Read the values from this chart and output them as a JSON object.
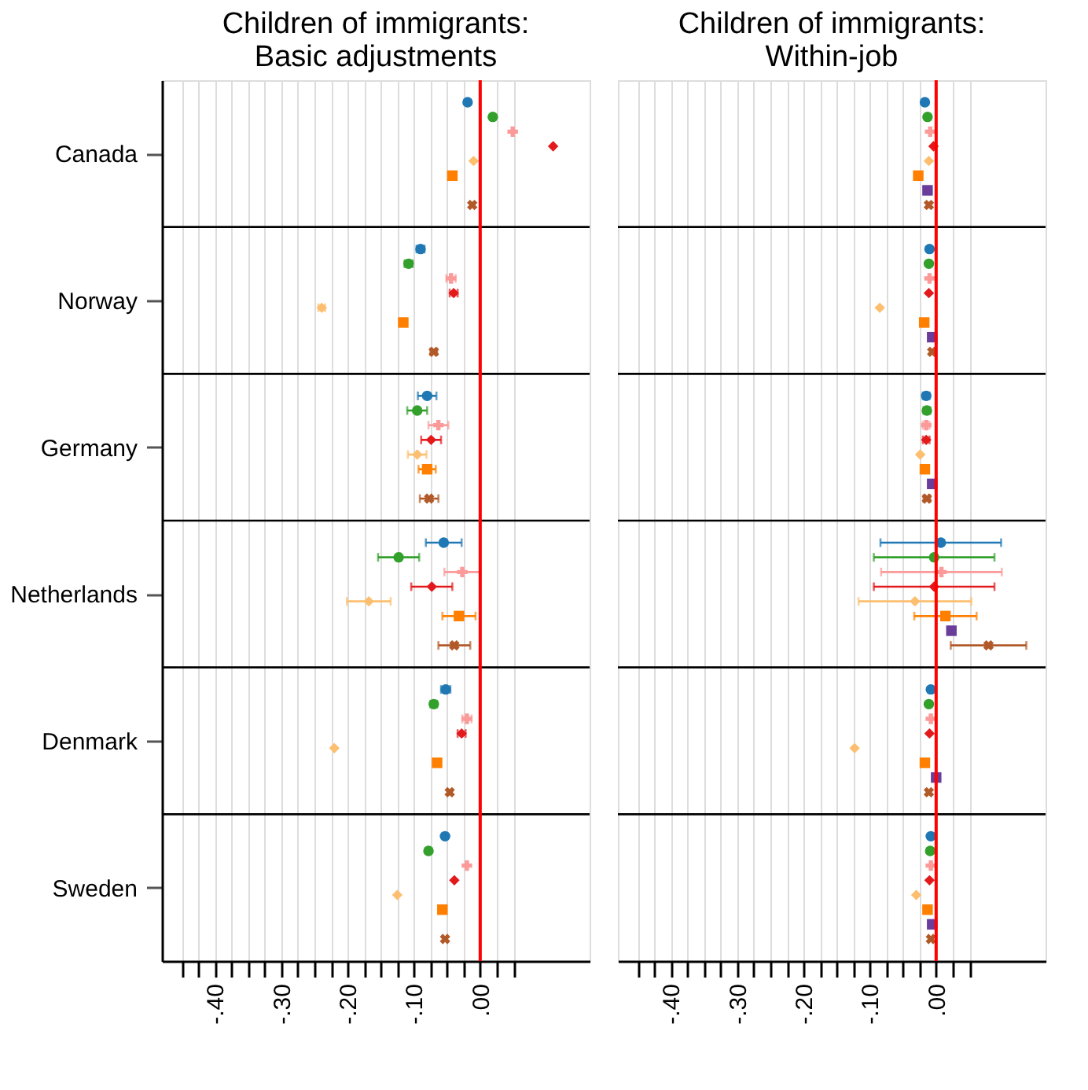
{
  "chart_data": [
    {
      "type": "scatter",
      "orientation": "horizontal",
      "title": "Children of immigrants:\nBasic adjustments",
      "categories": [
        "Canada",
        "Norway",
        "Germany",
        "Netherlands",
        "Denmark",
        "Sweden"
      ],
      "xlim": [
        -0.48,
        0.165
      ],
      "xticks": [
        {
          "value": -0.45,
          "label": null
        },
        {
          "value": -0.425,
          "label": null
        },
        {
          "value": -0.4,
          "label": "-.40"
        },
        {
          "value": -0.375,
          "label": null
        },
        {
          "value": -0.35,
          "label": null
        },
        {
          "value": -0.325,
          "label": null
        },
        {
          "value": -0.3,
          "label": "-.30"
        },
        {
          "value": -0.275,
          "label": null
        },
        {
          "value": -0.25,
          "label": null
        },
        {
          "value": -0.225,
          "label": null
        },
        {
          "value": -0.2,
          "label": "-.20"
        },
        {
          "value": -0.175,
          "label": null
        },
        {
          "value": -0.15,
          "label": null
        },
        {
          "value": -0.125,
          "label": null
        },
        {
          "value": -0.1,
          "label": "-.10"
        },
        {
          "value": -0.075,
          "label": null
        },
        {
          "value": -0.05,
          "label": null
        },
        {
          "value": -0.025,
          "label": null
        },
        {
          "value": 0,
          "label": ".00"
        },
        {
          "value": 0.025,
          "label": null
        },
        {
          "value": 0.05,
          "label": null
        }
      ],
      "grid": "x",
      "ref_lines": [
        {
          "axis": "x",
          "value": 0,
          "color": "#ff0000"
        }
      ],
      "series": [
        {
          "color": "#1f78b4",
          "marker": "circle",
          "values": [
            -0.019,
            -0.09,
            -0.08,
            -0.055,
            -0.052,
            -0.053
          ],
          "errors": [
            null,
            0.006,
            0.014,
            0.027,
            0.007,
            null
          ]
        },
        {
          "color": "#33a02c",
          "marker": "circle",
          "values": [
            0.019,
            -0.108,
            -0.095,
            -0.123,
            -0.07,
            -0.078
          ],
          "errors": [
            null,
            0.006,
            0.015,
            0.031,
            0.005,
            null
          ]
        },
        {
          "color": "#fb9a99",
          "marker": "cross",
          "values": [
            0.049,
            -0.044,
            -0.063,
            -0.027,
            -0.02,
            -0.02
          ],
          "errors": [
            null,
            0.007,
            0.015,
            0.027,
            0.007,
            null
          ]
        },
        {
          "color": "#e31a1c",
          "marker": "diamond",
          "values": [
            0.11,
            -0.04,
            -0.074,
            -0.073,
            -0.028,
            -0.039
          ],
          "errors": [
            null,
            0.006,
            0.015,
            0.031,
            0.006,
            null
          ]
        },
        {
          "color": "#fdbf6f",
          "marker": "diamond",
          "values": [
            -0.01,
            -0.239,
            -0.095,
            -0.168,
            -0.22,
            -0.125
          ],
          "errors": [
            null,
            0.005,
            0.014,
            0.033,
            null,
            null
          ]
        },
        {
          "color": "#ff7f00",
          "marker": "square",
          "values": [
            -0.042,
            -0.116,
            -0.08,
            -0.032,
            -0.065,
            -0.057
          ],
          "errors": [
            null,
            0.004,
            0.013,
            0.025,
            null,
            null
          ]
        },
        {
          "color": "#6a3d9a",
          "marker": "square",
          "values": [
            null,
            null,
            null,
            null,
            null,
            null
          ]
        },
        {
          "color": "#b15928",
          "marker": "x",
          "values": [
            -0.012,
            -0.07,
            -0.077,
            -0.039,
            -0.046,
            -0.053
          ],
          "errors": [
            null,
            0.005,
            0.014,
            0.024,
            null,
            null
          ]
        }
      ]
    },
    {
      "type": "scatter",
      "orientation": "horizontal",
      "title": "Children of immigrants:\nWithin-job",
      "tick_labels": "x",
      "categories": [
        null,
        null,
        null,
        null,
        null,
        null
      ],
      "xlim": [
        -0.48,
        0.165
      ],
      "xticks": [
        {
          "value": -0.45,
          "label": null
        },
        {
          "value": -0.425,
          "label": null
        },
        {
          "value": -0.4,
          "label": "-.40"
        },
        {
          "value": -0.375,
          "label": null
        },
        {
          "value": -0.35,
          "label": null
        },
        {
          "value": -0.325,
          "label": null
        },
        {
          "value": -0.3,
          "label": "-.30"
        },
        {
          "value": -0.275,
          "label": null
        },
        {
          "value": -0.25,
          "label": null
        },
        {
          "value": -0.225,
          "label": null
        },
        {
          "value": -0.2,
          "label": "-.20"
        },
        {
          "value": -0.175,
          "label": null
        },
        {
          "value": -0.15,
          "label": null
        },
        {
          "value": -0.125,
          "label": null
        },
        {
          "value": -0.1,
          "label": "-.10"
        },
        {
          "value": -0.075,
          "label": null
        },
        {
          "value": -0.05,
          "label": null
        },
        {
          "value": -0.025,
          "label": null
        },
        {
          "value": 0,
          "label": ".00"
        },
        {
          "value": 0.025,
          "label": null
        },
        {
          "value": 0.05,
          "label": null
        }
      ],
      "grid": "x",
      "ref_lines": [
        {
          "axis": "x",
          "value": 0,
          "color": "#ff0000"
        }
      ],
      "series": [
        {
          "color": "#1f78b4",
          "marker": "circle",
          "values": [
            -0.017,
            -0.01,
            -0.015,
            0.007,
            -0.008,
            -0.008
          ],
          "errors": [
            null,
            null,
            0.005,
            0.091,
            null,
            null
          ]
        },
        {
          "color": "#33a02c",
          "marker": "circle",
          "values": [
            -0.013,
            -0.011,
            -0.014,
            -0.003,
            -0.011,
            -0.009
          ],
          "errors": [
            null,
            null,
            0.005,
            0.091,
            null,
            null
          ]
        },
        {
          "color": "#fb9a99",
          "marker": "cross",
          "values": [
            -0.009,
            -0.01,
            -0.015,
            0.008,
            -0.008,
            -0.008
          ],
          "errors": [
            null,
            null,
            0.005,
            0.091,
            null,
            null
          ]
        },
        {
          "color": "#e31a1c",
          "marker": "diamond",
          "values": [
            -0.004,
            -0.011,
            -0.015,
            -0.003,
            -0.01,
            -0.01
          ],
          "errors": [
            null,
            null,
            0.005,
            0.091,
            null,
            null
          ]
        },
        {
          "color": "#fdbf6f",
          "marker": "diamond",
          "values": [
            -0.011,
            -0.085,
            -0.024,
            -0.032,
            -0.123,
            -0.03
          ],
          "errors": [
            null,
            null,
            null,
            0.085,
            null,
            null
          ]
        },
        {
          "color": "#ff7f00",
          "marker": "square",
          "values": [
            -0.027,
            -0.018,
            -0.017,
            0.014,
            -0.017,
            -0.013
          ],
          "errors": [
            null,
            null,
            null,
            0.047,
            null,
            null
          ]
        },
        {
          "color": "#6a3d9a",
          "marker": "square",
          "values": [
            -0.013,
            -0.006,
            -0.006,
            0.023,
            0.0,
            -0.006
          ]
        },
        {
          "color": "#b15928",
          "marker": "x",
          "values": [
            -0.011,
            -0.006,
            -0.014,
            0.079,
            -0.011,
            -0.008
          ],
          "errors": [
            null,
            null,
            0.005,
            0.057,
            null,
            null
          ]
        }
      ]
    }
  ]
}
